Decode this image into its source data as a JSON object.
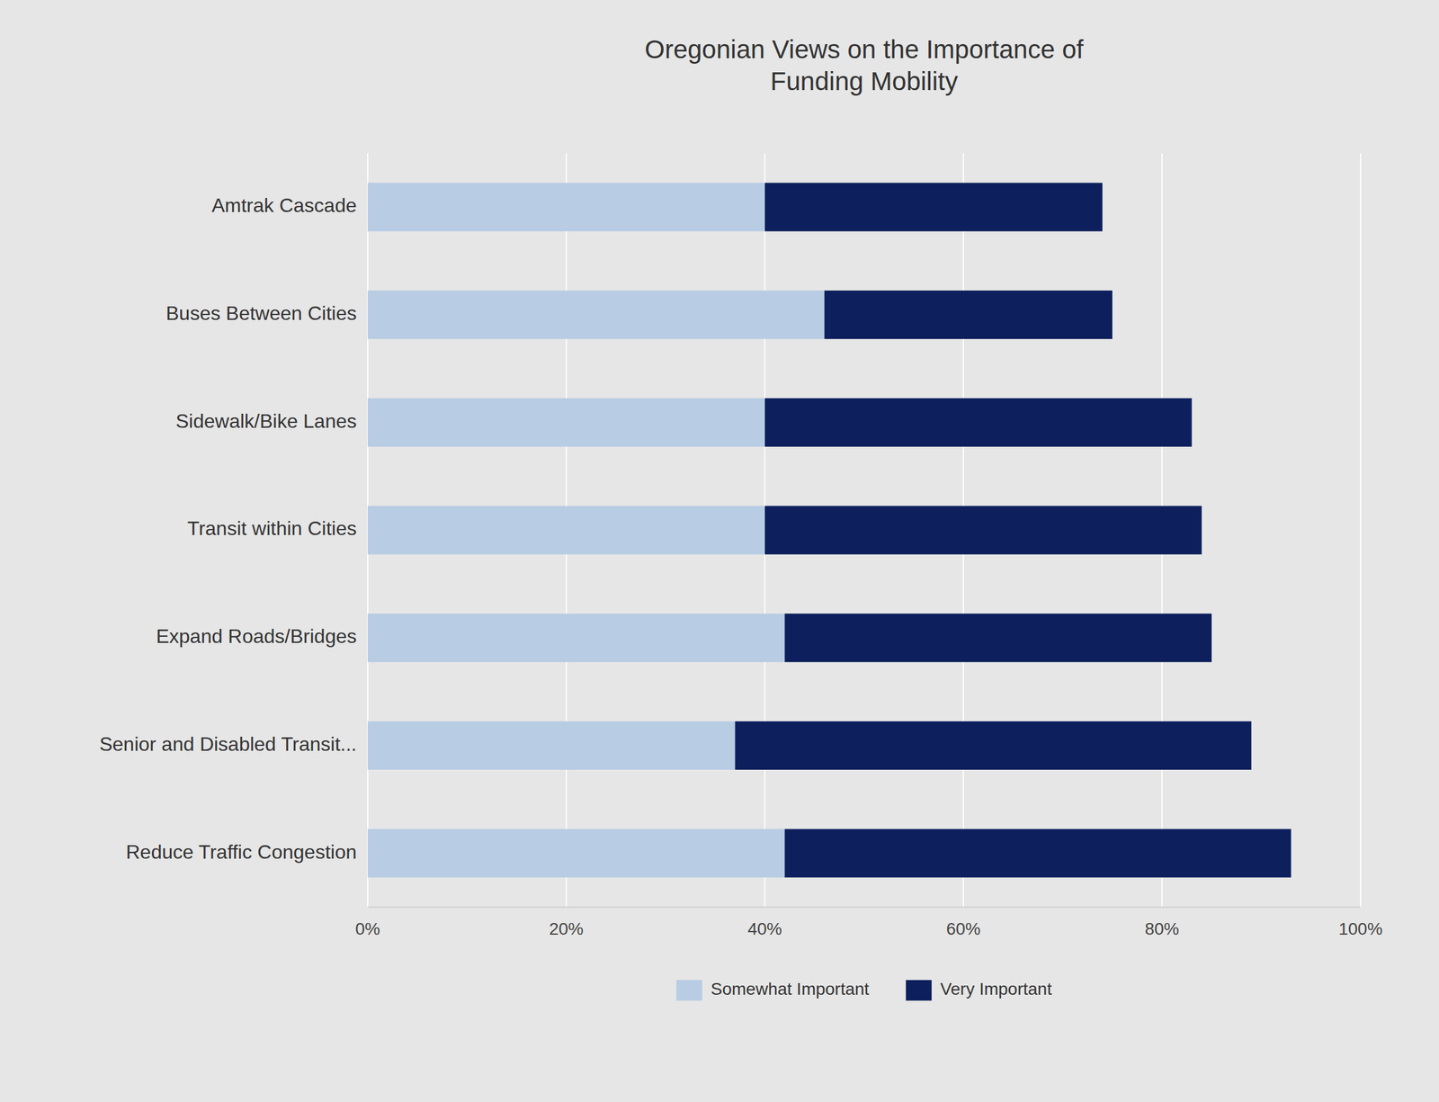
{
  "chart_data": {
    "type": "bar",
    "orientation": "horizontal",
    "stacked": true,
    "title": "Oregonian Views on the Importance of\nFunding Mobility",
    "categories": [
      "Amtrak Cascade",
      "Buses Between Cities",
      "Sidewalk/Bike Lanes",
      "Transit within Cities",
      "Expand Roads/Bridges",
      "Senior and Disabled Transit...",
      "Reduce Traffic Congestion"
    ],
    "series": [
      {
        "name": "Somewhat Important",
        "color": "#b8cce4",
        "values": [
          40,
          46,
          40,
          40,
          42,
          37,
          42
        ]
      },
      {
        "name": "Very Important",
        "color": "#0d1f5c",
        "values": [
          34,
          29,
          43,
          44,
          43,
          52,
          51
        ]
      }
    ],
    "xlim": [
      0,
      100
    ],
    "xticks": [
      {
        "value": 0,
        "label": "0%"
      },
      {
        "value": 20,
        "label": "20%"
      },
      {
        "value": 40,
        "label": "40%"
      },
      {
        "value": 60,
        "label": "60%"
      },
      {
        "value": 80,
        "label": "80%"
      },
      {
        "value": 100,
        "label": "100%"
      }
    ],
    "grid": true,
    "legend": "bottom"
  }
}
